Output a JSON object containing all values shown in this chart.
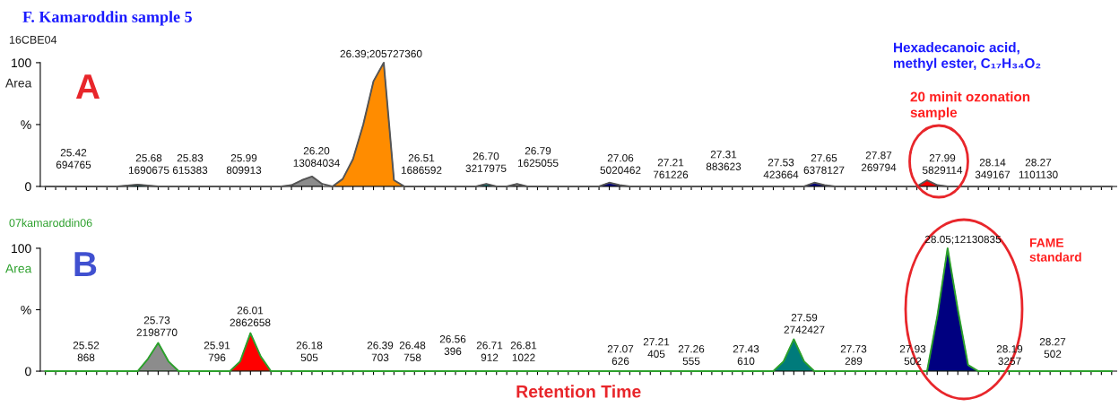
{
  "chart_data": [
    {
      "type": "area",
      "title": "F. Kamaroddin sample 5",
      "subtitle": "16CBE04",
      "ylabel": "Area",
      "ylim": [
        0,
        100
      ],
      "yticks": [
        0,
        {
          "value": 50,
          "label": "%"
        },
        100
      ],
      "tick_labels": "y",
      "legend": false,
      "categories": [
        null,
        null,
        null,
        null,
        null,
        null,
        null,
        null,
        null,
        null,
        null,
        null,
        null,
        null,
        null,
        null,
        null,
        null,
        null,
        null,
        null,
        null,
        null,
        null,
        null,
        null,
        null,
        null,
        null,
        null,
        null,
        null,
        null,
        null,
        null,
        null,
        null,
        null,
        null,
        null,
        null,
        null,
        null,
        null,
        null,
        null,
        null,
        null,
        null,
        null,
        null,
        null,
        null,
        null,
        null,
        null,
        null,
        null,
        null,
        null,
        null,
        null,
        null,
        null,
        null,
        null,
        null,
        null,
        null,
        null,
        null,
        null,
        null,
        null,
        null,
        null,
        null,
        null,
        null,
        null,
        null,
        null,
        null,
        null,
        null,
        null,
        null,
        null,
        null,
        null,
        null,
        null,
        null,
        null,
        null,
        null,
        null,
        null,
        null,
        null,
        null,
        null,
        null,
        null,
        null
      ],
      "series": [
        {
          "type": "line",
          "color": "#555555",
          "values": [
            0,
            0,
            0,
            0,
            0,
            0,
            0,
            0,
            0.7,
            1.5,
            0.7,
            0,
            0,
            0,
            0,
            0,
            0,
            0,
            0,
            0,
            0,
            0,
            0,
            0,
            1,
            5,
            8,
            2,
            0,
            6,
            22,
            50,
            85,
            100,
            5,
            0,
            0,
            0,
            0,
            0,
            0,
            0,
            0,
            2,
            0,
            0,
            2,
            0,
            0,
            0,
            0,
            0,
            0,
            0,
            0,
            3,
            1,
            0,
            0,
            0,
            0,
            0,
            0,
            0,
            0,
            0,
            0,
            0,
            0,
            0,
            0,
            0,
            0,
            0,
            0,
            3,
            1,
            0,
            0,
            0,
            0,
            0,
            0,
            0,
            0,
            0,
            5,
            1,
            0,
            0,
            0,
            0,
            0,
            0,
            0,
            0,
            0,
            0,
            0,
            0,
            0,
            0,
            0,
            0,
            0
          ]
        },
        {
          "color": "#007b7b",
          "values": [
            null,
            null,
            null,
            null,
            null,
            null,
            null,
            0,
            0.7,
            1.5,
            0.7,
            0,
            null,
            null,
            null,
            null,
            null,
            null,
            null,
            null,
            null,
            null,
            null,
            null,
            null,
            null,
            null,
            null,
            null,
            null,
            null,
            null,
            null,
            null,
            null,
            null,
            null,
            null,
            null,
            null,
            null,
            null,
            null,
            null,
            null,
            null,
            null,
            null,
            null,
            null,
            null,
            null,
            null,
            null,
            null,
            null,
            null,
            null,
            null,
            null,
            null,
            null,
            null,
            null,
            null,
            null,
            null,
            null,
            null,
            null,
            null,
            null,
            null,
            null,
            null,
            null,
            null,
            null,
            null,
            null,
            null,
            null,
            null,
            null,
            null,
            null,
            null,
            null,
            null,
            null,
            null,
            null,
            null,
            null,
            null,
            null,
            null,
            null,
            null,
            null,
            null,
            null,
            null,
            null,
            null
          ]
        },
        {
          "color": "#8c8c8c",
          "values": [
            null,
            null,
            null,
            null,
            null,
            null,
            null,
            null,
            null,
            null,
            null,
            null,
            null,
            null,
            null,
            null,
            null,
            null,
            null,
            null,
            null,
            null,
            null,
            0,
            1,
            5,
            8,
            2,
            null,
            null,
            null,
            null,
            null,
            null,
            null,
            null,
            null,
            null,
            null,
            null,
            null,
            null,
            null,
            null,
            null,
            null,
            null,
            null,
            null,
            null,
            null,
            null,
            null,
            null,
            null,
            null,
            null,
            null,
            null,
            null,
            null,
            null,
            null,
            null,
            null,
            null,
            null,
            null,
            null,
            null,
            null,
            null,
            null,
            null,
            null,
            null,
            null,
            null,
            null,
            null,
            null,
            null,
            null,
            null,
            null,
            null,
            null,
            null,
            null,
            null,
            null,
            null,
            null,
            null,
            null,
            null,
            null,
            null,
            null,
            null,
            null,
            null,
            null,
            null,
            null
          ]
        },
        {
          "color": "#ff8c00",
          "values": [
            null,
            null,
            null,
            null,
            null,
            null,
            null,
            null,
            null,
            null,
            null,
            null,
            null,
            null,
            null,
            null,
            null,
            null,
            null,
            null,
            null,
            null,
            null,
            null,
            null,
            null,
            null,
            null,
            0,
            6,
            22,
            50,
            85,
            100,
            5,
            0,
            null,
            null,
            null,
            null,
            null,
            null,
            null,
            null,
            null,
            null,
            null,
            null,
            null,
            null,
            null,
            null,
            null,
            null,
            null,
            null,
            null,
            null,
            null,
            null,
            null,
            null,
            null,
            null,
            null,
            null,
            null,
            null,
            null,
            null,
            null,
            null,
            null,
            null,
            null,
            null,
            null,
            null,
            null,
            null,
            null,
            null,
            null,
            null,
            null,
            null,
            null,
            null,
            null,
            null,
            null,
            null,
            null,
            null,
            null,
            null,
            null,
            null,
            null,
            null,
            null,
            null,
            null,
            null,
            null
          ]
        },
        {
          "color": "#007b7b",
          "values": [
            null,
            null,
            null,
            null,
            null,
            null,
            null,
            null,
            null,
            null,
            null,
            null,
            null,
            null,
            null,
            null,
            null,
            null,
            null,
            null,
            null,
            null,
            null,
            null,
            null,
            null,
            null,
            null,
            null,
            null,
            null,
            null,
            null,
            null,
            null,
            null,
            null,
            null,
            null,
            null,
            null,
            null,
            0,
            2,
            0,
            null,
            null,
            null,
            null,
            null,
            null,
            null,
            null,
            null,
            null,
            null,
            null,
            null,
            null,
            null,
            null,
            null,
            null,
            null,
            null,
            null,
            null,
            null,
            null,
            null,
            null,
            null,
            null,
            null,
            null,
            null,
            null,
            null,
            null,
            null,
            null,
            null,
            null,
            null,
            null,
            null,
            null,
            null,
            null,
            null,
            null,
            null,
            null,
            null,
            null,
            null,
            null,
            null,
            null,
            null,
            null,
            null,
            null,
            null,
            null
          ]
        },
        {
          "color": "#8c8c8c",
          "values": [
            null,
            null,
            null,
            null,
            null,
            null,
            null,
            null,
            null,
            null,
            null,
            null,
            null,
            null,
            null,
            null,
            null,
            null,
            null,
            null,
            null,
            null,
            null,
            null,
            null,
            null,
            null,
            null,
            null,
            null,
            null,
            null,
            null,
            null,
            null,
            null,
            null,
            null,
            null,
            null,
            null,
            null,
            null,
            null,
            null,
            0,
            2,
            0,
            null,
            null,
            null,
            null,
            null,
            null,
            null,
            null,
            null,
            null,
            null,
            null,
            null,
            null,
            null,
            null,
            null,
            null,
            null,
            null,
            null,
            null,
            null,
            null,
            null,
            null,
            null,
            null,
            null,
            null,
            null,
            null,
            null,
            null,
            null,
            null,
            null,
            null,
            null,
            null,
            null,
            null,
            null,
            null,
            null,
            null,
            null,
            null,
            null,
            null,
            null,
            null,
            null,
            null,
            null,
            null,
            null
          ]
        },
        {
          "color": "#000080",
          "values": [
            null,
            null,
            null,
            null,
            null,
            null,
            null,
            null,
            null,
            null,
            null,
            null,
            null,
            null,
            null,
            null,
            null,
            null,
            null,
            null,
            null,
            null,
            null,
            null,
            null,
            null,
            null,
            null,
            null,
            null,
            null,
            null,
            null,
            null,
            null,
            null,
            null,
            null,
            null,
            null,
            null,
            null,
            null,
            null,
            null,
            null,
            null,
            null,
            null,
            null,
            null,
            null,
            null,
            null,
            0,
            3,
            1,
            0,
            null,
            null,
            null,
            null,
            null,
            null,
            null,
            null,
            null,
            null,
            null,
            null,
            null,
            null,
            null,
            null,
            null,
            null,
            null,
            null,
            null,
            null,
            null,
            null,
            null,
            null,
            null,
            null,
            null,
            null,
            null,
            null,
            null,
            null,
            null,
            null,
            null,
            null,
            null,
            null,
            null,
            null,
            null,
            null,
            null,
            null,
            null
          ]
        },
        {
          "color": "#000080",
          "values": [
            null,
            null,
            null,
            null,
            null,
            null,
            null,
            null,
            null,
            null,
            null,
            null,
            null,
            null,
            null,
            null,
            null,
            null,
            null,
            null,
            null,
            null,
            null,
            null,
            null,
            null,
            null,
            null,
            null,
            null,
            null,
            null,
            null,
            null,
            null,
            null,
            null,
            null,
            null,
            null,
            null,
            null,
            null,
            null,
            null,
            null,
            null,
            null,
            null,
            null,
            null,
            null,
            null,
            null,
            null,
            null,
            null,
            null,
            null,
            null,
            null,
            null,
            null,
            null,
            null,
            null,
            null,
            null,
            null,
            null,
            null,
            null,
            null,
            null,
            0,
            3,
            1,
            0,
            null,
            null,
            null,
            null,
            null,
            null,
            null,
            null,
            null,
            null,
            null,
            null,
            null,
            null,
            null,
            null,
            null,
            null,
            null,
            null,
            null,
            null,
            null,
            null,
            null,
            null,
            null
          ]
        },
        {
          "color": "#ff0000",
          "values": [
            null,
            null,
            null,
            null,
            null,
            null,
            null,
            null,
            null,
            null,
            null,
            null,
            null,
            null,
            null,
            null,
            null,
            null,
            null,
            null,
            null,
            null,
            null,
            null,
            null,
            null,
            null,
            null,
            null,
            null,
            null,
            null,
            null,
            null,
            null,
            null,
            null,
            null,
            null,
            null,
            null,
            null,
            null,
            null,
            null,
            null,
            null,
            null,
            null,
            null,
            null,
            null,
            null,
            null,
            null,
            null,
            null,
            null,
            null,
            null,
            null,
            null,
            null,
            null,
            null,
            null,
            null,
            null,
            null,
            null,
            null,
            null,
            null,
            null,
            null,
            null,
            null,
            null,
            null,
            null,
            null,
            null,
            null,
            null,
            null,
            0,
            5,
            1,
            0,
            null,
            null,
            null,
            null,
            null,
            null,
            null,
            null,
            null,
            null,
            null,
            null,
            null,
            null,
            null,
            null
          ]
        }
      ],
      "annotations": [
        "A",
        "Hexadecanoic acid,\nmethyl ester, C₁₇H₃₄O₂",
        "20 minit ozonation\nsample",
        "25.42\n694765",
        "25.68\n1690675",
        "25.83\n615383",
        "25.99\n809913",
        "26.20\n13084034",
        "26.39;205727360",
        "26.51\n1686592",
        "26.70\n3217975",
        "26.79\n1625055",
        "27.06\n5020462",
        "27.21\n761226",
        "27.31\n883623",
        "27.53\n423664",
        "27.65\n6378127",
        "27.87\n269794",
        "27.99\n5829114",
        "28.14\n349167",
        "28.27\n1101130"
      ]
    },
    {
      "type": "area",
      "subtitle": "07kamaroddin06",
      "ylabel": "Area",
      "xlabel": "Retention Time",
      "ylim": [
        0,
        100
      ],
      "yticks": [
        0,
        {
          "value": 50,
          "label": "%"
        },
        100
      ],
      "tick_labels": "y",
      "legend": false,
      "categories": [
        null,
        null,
        null,
        null,
        null,
        null,
        null,
        null,
        null,
        null,
        null,
        null,
        null,
        null,
        null,
        null,
        null,
        null,
        null,
        null,
        null,
        null,
        null,
        null,
        null,
        null,
        null,
        null,
        null,
        null,
        null,
        null,
        null,
        null,
        null,
        null,
        null,
        null,
        null,
        null,
        null,
        null,
        null,
        null,
        null,
        null,
        null,
        null,
        null,
        null,
        null,
        null,
        null,
        null,
        null,
        null,
        null,
        null,
        null,
        null,
        null,
        null,
        null,
        null,
        null,
        null,
        null,
        null,
        null,
        null,
        null,
        null,
        null,
        null,
        null,
        null,
        null,
        null,
        null,
        null,
        null,
        null,
        null,
        null,
        null,
        null,
        null,
        null,
        null,
        null,
        null,
        null,
        null,
        null,
        null,
        null,
        null,
        null,
        null,
        null,
        null,
        null,
        null,
        null,
        null
      ],
      "series": [
        {
          "type": "line",
          "color": "#2ca02c",
          "values": [
            0,
            0,
            0,
            0,
            0,
            0,
            0,
            0,
            0,
            0,
            10,
            23,
            8,
            0,
            0,
            0,
            0,
            0,
            0,
            8,
            31,
            12,
            0,
            0,
            0,
            0,
            0,
            0,
            0,
            0,
            0,
            0,
            0,
            0,
            0,
            0,
            0,
            0,
            0,
            0,
            0,
            0,
            0,
            0,
            0,
            0,
            0,
            0,
            0,
            0,
            0,
            0,
            0,
            0,
            0,
            0,
            0,
            0,
            0,
            0,
            0,
            0,
            0,
            0,
            0,
            0,
            0,
            0,
            0,
            0,
            0,
            0,
            8,
            26,
            8,
            0,
            0,
            0,
            0,
            0,
            0,
            0,
            0,
            0,
            0,
            0,
            0,
            45,
            100,
            50,
            5,
            0,
            0,
            0,
            0,
            0,
            0,
            0,
            0,
            0,
            0,
            0,
            0,
            0,
            0
          ]
        },
        {
          "color": "#8c8c8c",
          "values": [
            null,
            null,
            null,
            null,
            null,
            null,
            null,
            null,
            null,
            0,
            10,
            23,
            8,
            0,
            null,
            null,
            null,
            null,
            null,
            null,
            null,
            null,
            null,
            null,
            null,
            null,
            null,
            null,
            null,
            null,
            null,
            null,
            null,
            null,
            null,
            null,
            null,
            null,
            null,
            null,
            null,
            null,
            null,
            null,
            null,
            null,
            null,
            null,
            null,
            null,
            null,
            null,
            null,
            null,
            null,
            null,
            null,
            null,
            null,
            null,
            null,
            null,
            null,
            null,
            null,
            null,
            null,
            null,
            null,
            null,
            null,
            null,
            null,
            null,
            null,
            null,
            null,
            null,
            null,
            null,
            null,
            null,
            null,
            null,
            null,
            null,
            null,
            null,
            null,
            null,
            null,
            null,
            null,
            null,
            null,
            null,
            null,
            null,
            null,
            null,
            null,
            null,
            null,
            null,
            null
          ]
        },
        {
          "color": "#ff0000",
          "values": [
            null,
            null,
            null,
            null,
            null,
            null,
            null,
            null,
            null,
            null,
            null,
            null,
            null,
            null,
            null,
            null,
            null,
            null,
            0,
            8,
            31,
            12,
            0,
            null,
            null,
            null,
            null,
            null,
            null,
            null,
            null,
            null,
            null,
            null,
            null,
            null,
            null,
            null,
            null,
            null,
            null,
            null,
            null,
            null,
            null,
            null,
            null,
            null,
            null,
            null,
            null,
            null,
            null,
            null,
            null,
            null,
            null,
            null,
            null,
            null,
            null,
            null,
            null,
            null,
            null,
            null,
            null,
            null,
            null,
            null,
            null,
            null,
            null,
            null,
            null,
            null,
            null,
            null,
            null,
            null,
            null,
            null,
            null,
            null,
            null,
            null,
            null,
            null,
            null,
            null,
            null,
            null,
            null,
            null,
            null,
            null,
            null,
            null,
            null,
            null,
            null,
            null,
            null,
            null,
            null
          ]
        },
        {
          "color": "#007b7b",
          "values": [
            null,
            null,
            null,
            null,
            null,
            null,
            null,
            null,
            null,
            null,
            null,
            null,
            null,
            null,
            null,
            null,
            null,
            null,
            null,
            null,
            null,
            null,
            null,
            null,
            null,
            null,
            null,
            null,
            null,
            null,
            null,
            null,
            null,
            null,
            null,
            null,
            null,
            null,
            null,
            null,
            null,
            null,
            null,
            null,
            null,
            null,
            null,
            null,
            null,
            null,
            null,
            null,
            null,
            null,
            null,
            null,
            null,
            null,
            null,
            null,
            null,
            null,
            null,
            null,
            null,
            null,
            null,
            null,
            null,
            null,
            null,
            0,
            8,
            26,
            8,
            0,
            null,
            null,
            null,
            null,
            null,
            null,
            null,
            null,
            null,
            null,
            null,
            null,
            null,
            null,
            null,
            null,
            null,
            null,
            null,
            null,
            null,
            null,
            null,
            null,
            null,
            null,
            null,
            null,
            null
          ]
        },
        {
          "color": "#000080",
          "values": [
            null,
            null,
            null,
            null,
            null,
            null,
            null,
            null,
            null,
            null,
            null,
            null,
            null,
            null,
            null,
            null,
            null,
            null,
            null,
            null,
            null,
            null,
            null,
            null,
            null,
            null,
            null,
            null,
            null,
            null,
            null,
            null,
            null,
            null,
            null,
            null,
            null,
            null,
            null,
            null,
            null,
            null,
            null,
            null,
            null,
            null,
            null,
            null,
            null,
            null,
            null,
            null,
            null,
            null,
            null,
            null,
            null,
            null,
            null,
            null,
            null,
            null,
            null,
            null,
            null,
            null,
            null,
            null,
            null,
            null,
            null,
            null,
            null,
            null,
            null,
            null,
            null,
            null,
            null,
            null,
            null,
            null,
            null,
            null,
            null,
            null,
            0,
            45,
            100,
            50,
            5,
            0,
            null,
            null,
            null,
            null,
            null,
            null,
            null,
            null,
            null,
            null,
            null,
            null,
            null
          ]
        }
      ],
      "annotations": [
        "B",
        "FAME\nstandard",
        "25.52\n868",
        "25.73\n2198770",
        "25.91\n796",
        "26.01\n2862658",
        "26.18\n505",
        "26.39\n703",
        "26.48\n758",
        "26.56\n396",
        "26.71\n912",
        "26.81\n1022",
        "27.07\n626",
        "27.21\n405",
        "27.26\n555",
        "27.43\n610",
        "27.59\n2742427",
        "27.73\n289",
        "27.93\n502",
        "28.05;12130835",
        "28.19\n3257",
        "28.27\n502"
      ]
    }
  ]
}
